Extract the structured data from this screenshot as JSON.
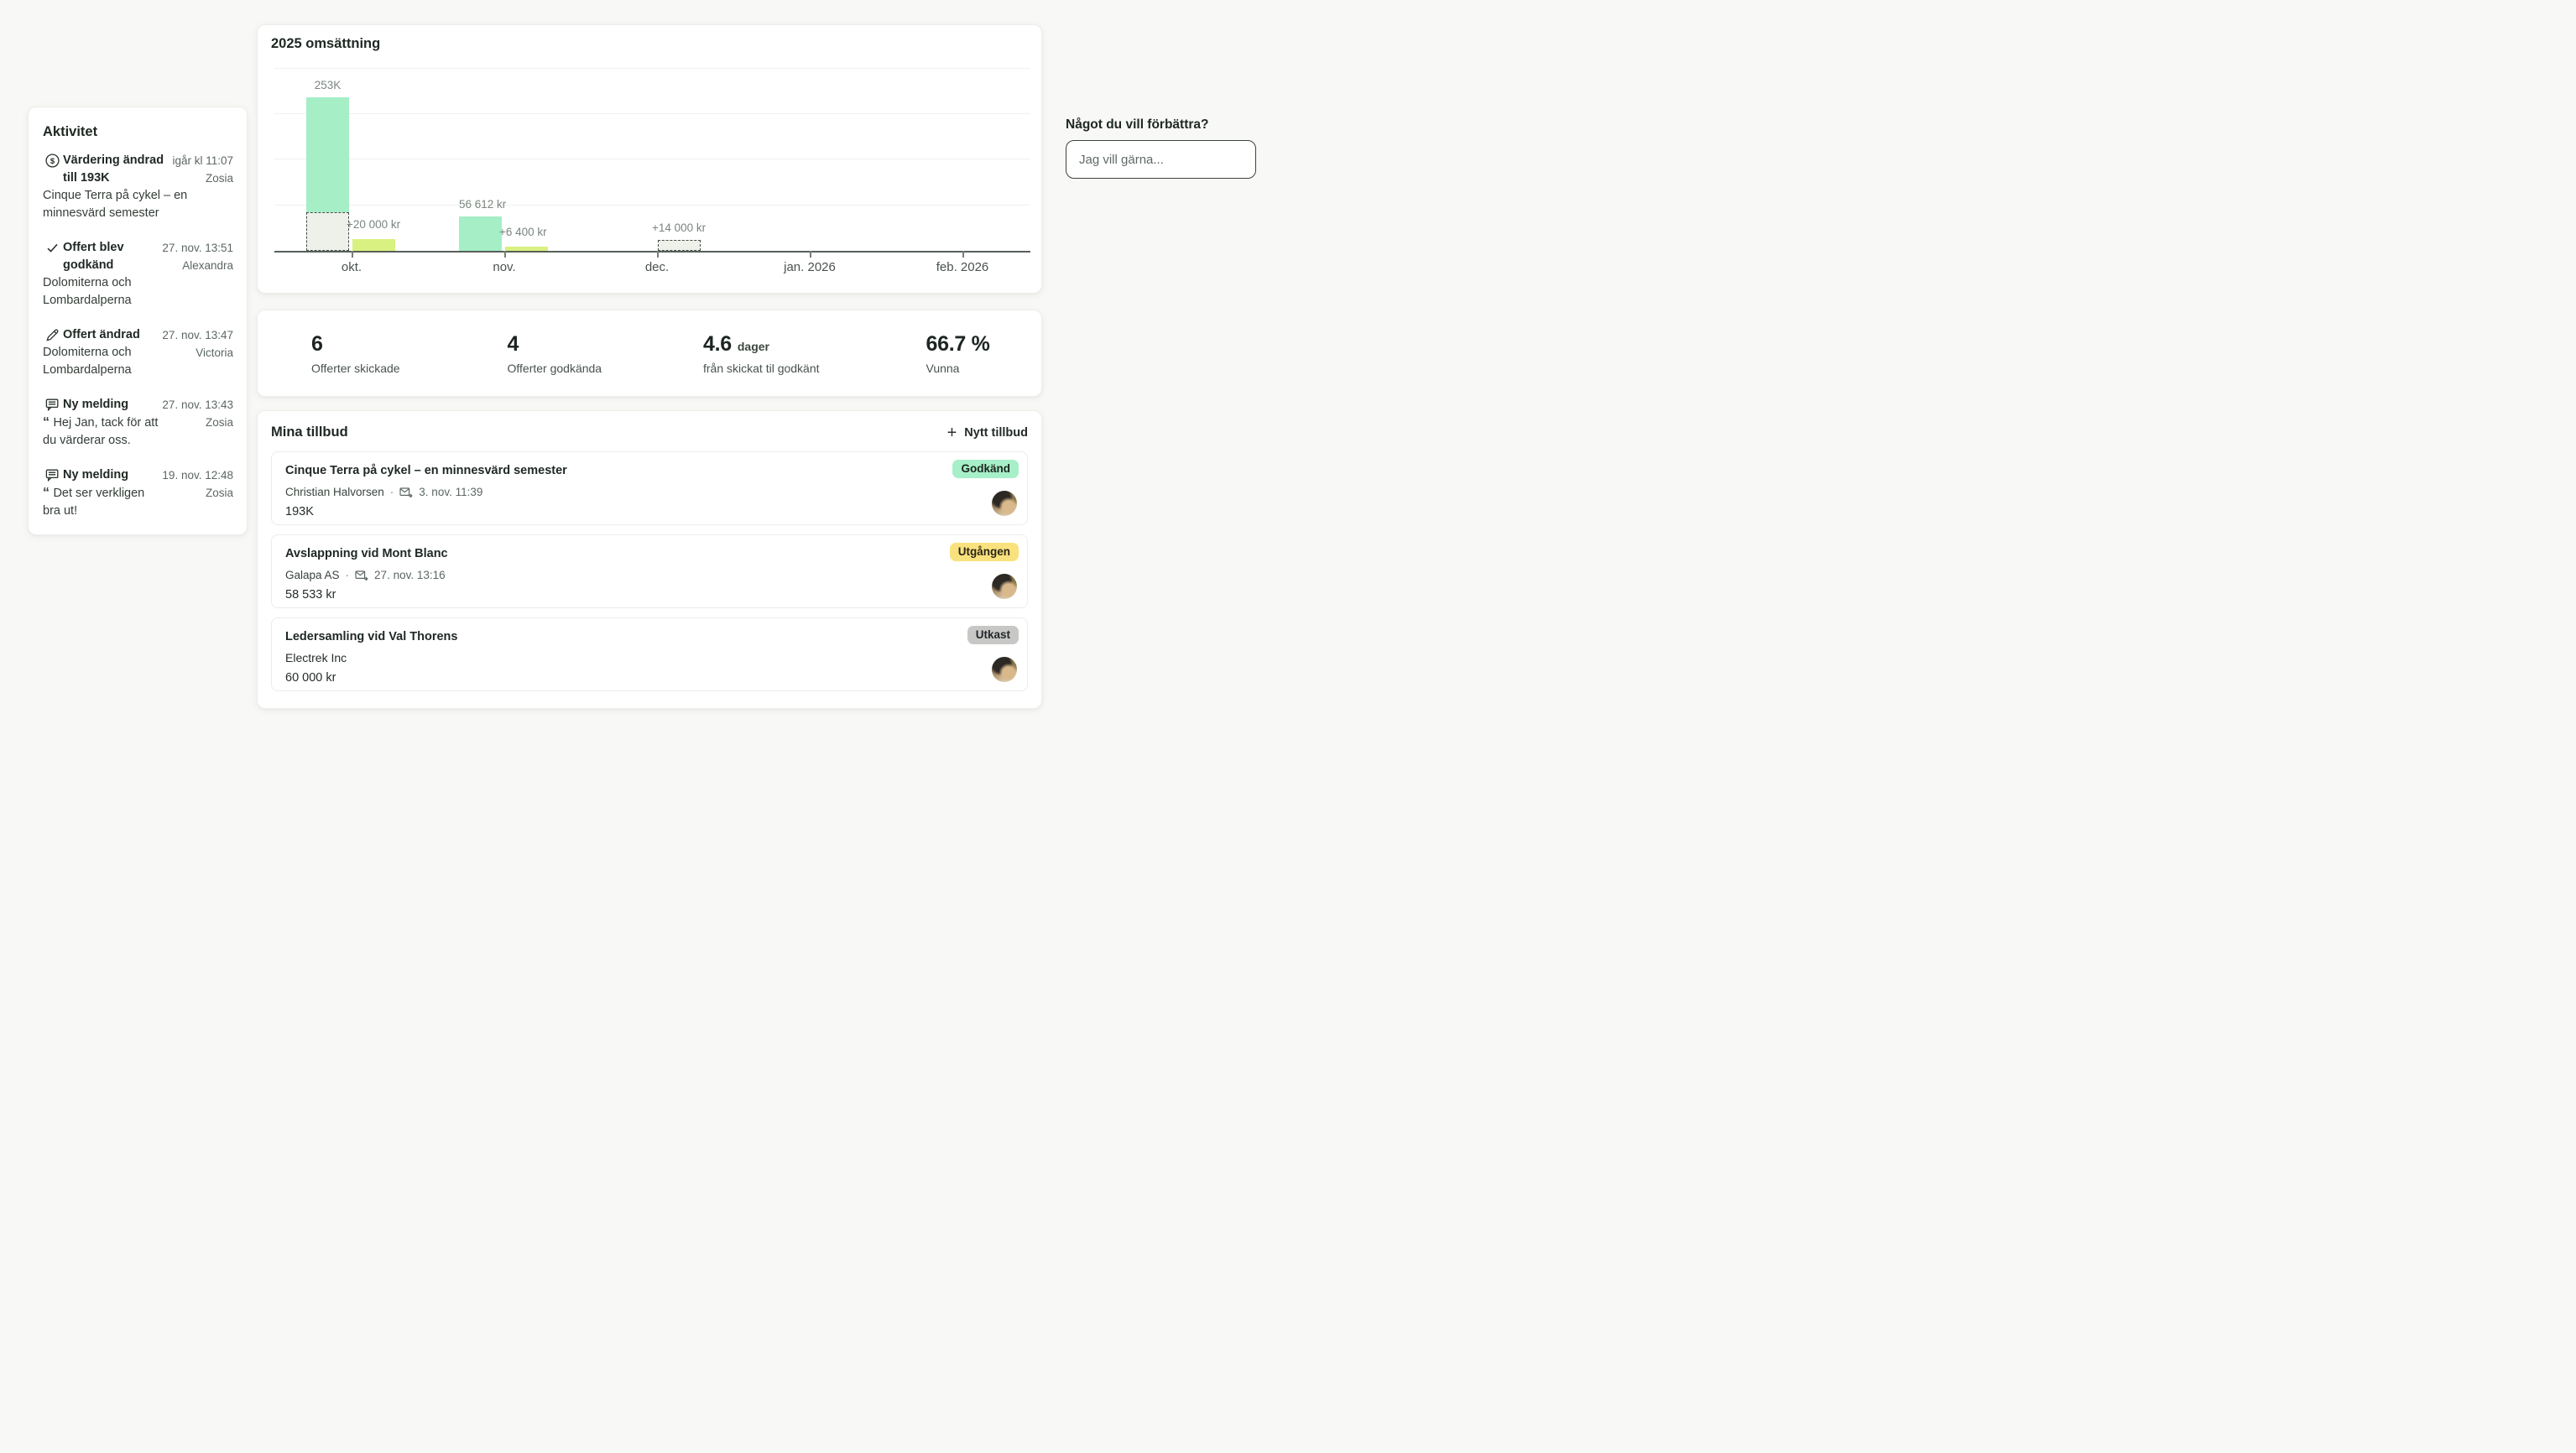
{
  "colors": {
    "page_bg": "#f8f8f6",
    "mint": "#a5eec6",
    "lime": "#d9f181",
    "draft_fill": "#eef1ea",
    "badge_approved_bg": "#a6efc8",
    "badge_expired_bg": "#f9e27d",
    "badge_draft_bg": "#c7c8c5",
    "axis": "#575f5a"
  },
  "activity": {
    "title": "Aktivitet",
    "entries": [
      {
        "icon": "dollar-circle",
        "title_lines": [
          "Värdering ändrad",
          "till 193K"
        ],
        "time": "igår kl 11:07",
        "user": "Zosia",
        "desc_lines": [
          "Cinque Terra på cykel – en",
          "minnesvärd semester"
        ],
        "quote": false
      },
      {
        "icon": "check",
        "title_lines": [
          "Offert blev",
          "godkänd"
        ],
        "time": "27. nov. 13:51",
        "user": "Alexandra",
        "desc_lines": [
          "Dolomiterna och",
          "Lombardalperna"
        ],
        "quote": false
      },
      {
        "icon": "pencil",
        "title_lines": [
          "Offert ändrad"
        ],
        "time": "27. nov. 13:47",
        "user": "Victoria",
        "desc_lines": [
          "Dolomiterna och",
          "Lombardalperna"
        ],
        "quote": false
      },
      {
        "icon": "message",
        "title_lines": [
          "Ny melding"
        ],
        "time": "27. nov. 13:43",
        "user": "Zosia",
        "desc_lines": [
          "Hej Jan, tack för att",
          "du värderar oss."
        ],
        "quote": true
      },
      {
        "icon": "message",
        "title_lines": [
          "Ny melding"
        ],
        "time": "19. nov. 12:48",
        "user": "Zosia",
        "desc_lines": [
          "Det ser verkligen",
          "bra ut!"
        ],
        "quote": true
      }
    ]
  },
  "chart_data": {
    "type": "bar",
    "title": "2025 omsättning",
    "unit": "kr",
    "ylim": [
      0,
      300000
    ],
    "gridlines_kr": [
      75000,
      150000,
      225000,
      300000
    ],
    "legend": "none",
    "categories": [
      "okt.",
      "nov.",
      "dec.",
      "jan. 2026",
      "feb. 2026"
    ],
    "months": [
      {
        "category": "okt.",
        "revenue_kr": 253000,
        "revenue_label": "253K",
        "draft_overlay_kr": 60000,
        "added_kr": 20000,
        "added_label": "+20 000 kr",
        "added_dashed": false
      },
      {
        "category": "nov.",
        "revenue_kr": 56612,
        "revenue_label": "56 612 kr",
        "draft_overlay_kr": null,
        "added_kr": 6400,
        "added_label": "+6 400 kr",
        "added_dashed": false
      },
      {
        "category": "dec.",
        "revenue_kr": null,
        "revenue_label": null,
        "draft_overlay_kr": null,
        "added_kr": 14000,
        "added_label": "+14 000 kr",
        "added_dashed": true
      },
      {
        "category": "jan. 2026",
        "revenue_kr": null,
        "revenue_label": null,
        "draft_overlay_kr": null,
        "added_kr": null,
        "added_label": null,
        "added_dashed": false
      },
      {
        "category": "feb. 2026",
        "revenue_kr": null,
        "revenue_label": null,
        "draft_overlay_kr": null,
        "added_kr": null,
        "added_label": null,
        "added_dashed": false
      }
    ]
  },
  "stats": [
    {
      "value": "6",
      "unit": "",
      "label": "Offerter skickade"
    },
    {
      "value": "4",
      "unit": "",
      "label": "Offerter godkända"
    },
    {
      "value": "4.6",
      "unit": "dager",
      "label": "från skickat til godkänt"
    },
    {
      "value": "66.7 %",
      "unit": "",
      "label": "Vunna"
    }
  ],
  "tillbud": {
    "title": "Mina tillbud",
    "new_button": "Nytt tillbud",
    "rows": [
      {
        "title": "Cinque Terra på cykel – en minnesvärd semester",
        "meta_name": "Christian Halvorsen",
        "meta_date": "3. nov. 11:39",
        "value": "193K",
        "badge": "Godkänd",
        "badge_type": "approved"
      },
      {
        "title": "Avslappning vid Mont Blanc",
        "meta_name": "Galapa AS",
        "meta_date": "27. nov. 13:16",
        "value": "58 533 kr",
        "badge": "Utgången",
        "badge_type": "expired"
      },
      {
        "title": "Ledersamling vid Val Thorens",
        "meta_name": "Electrek Inc",
        "meta_date": null,
        "value": "60 000 kr",
        "badge": "Utkast",
        "badge_type": "draft"
      }
    ]
  },
  "feedback": {
    "title": "Något du vill förbättra?",
    "placeholder": "Jag vill gärna..."
  }
}
